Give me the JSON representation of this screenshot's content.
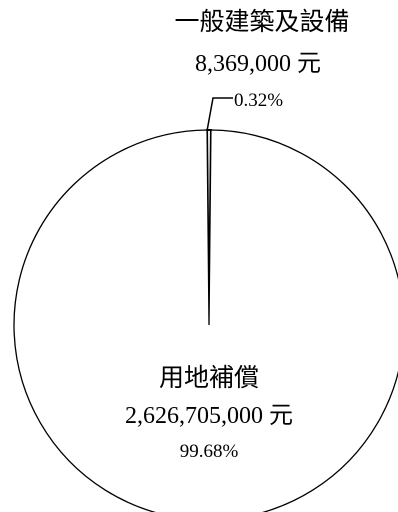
{
  "chart_data": {
    "type": "pie",
    "title": "",
    "unit": "元",
    "slices": [
      {
        "label": "一般建築及設備",
        "value": 8369000,
        "value_text": "8,369,000 元",
        "percent_text": "0.32%"
      },
      {
        "label": "用地補償",
        "value": 2626705000,
        "value_text": "2,626,705,000 元",
        "percent_text": "99.68%"
      }
    ]
  },
  "colors": {
    "slice_fill": "#ffffff",
    "stroke": "#000000"
  }
}
